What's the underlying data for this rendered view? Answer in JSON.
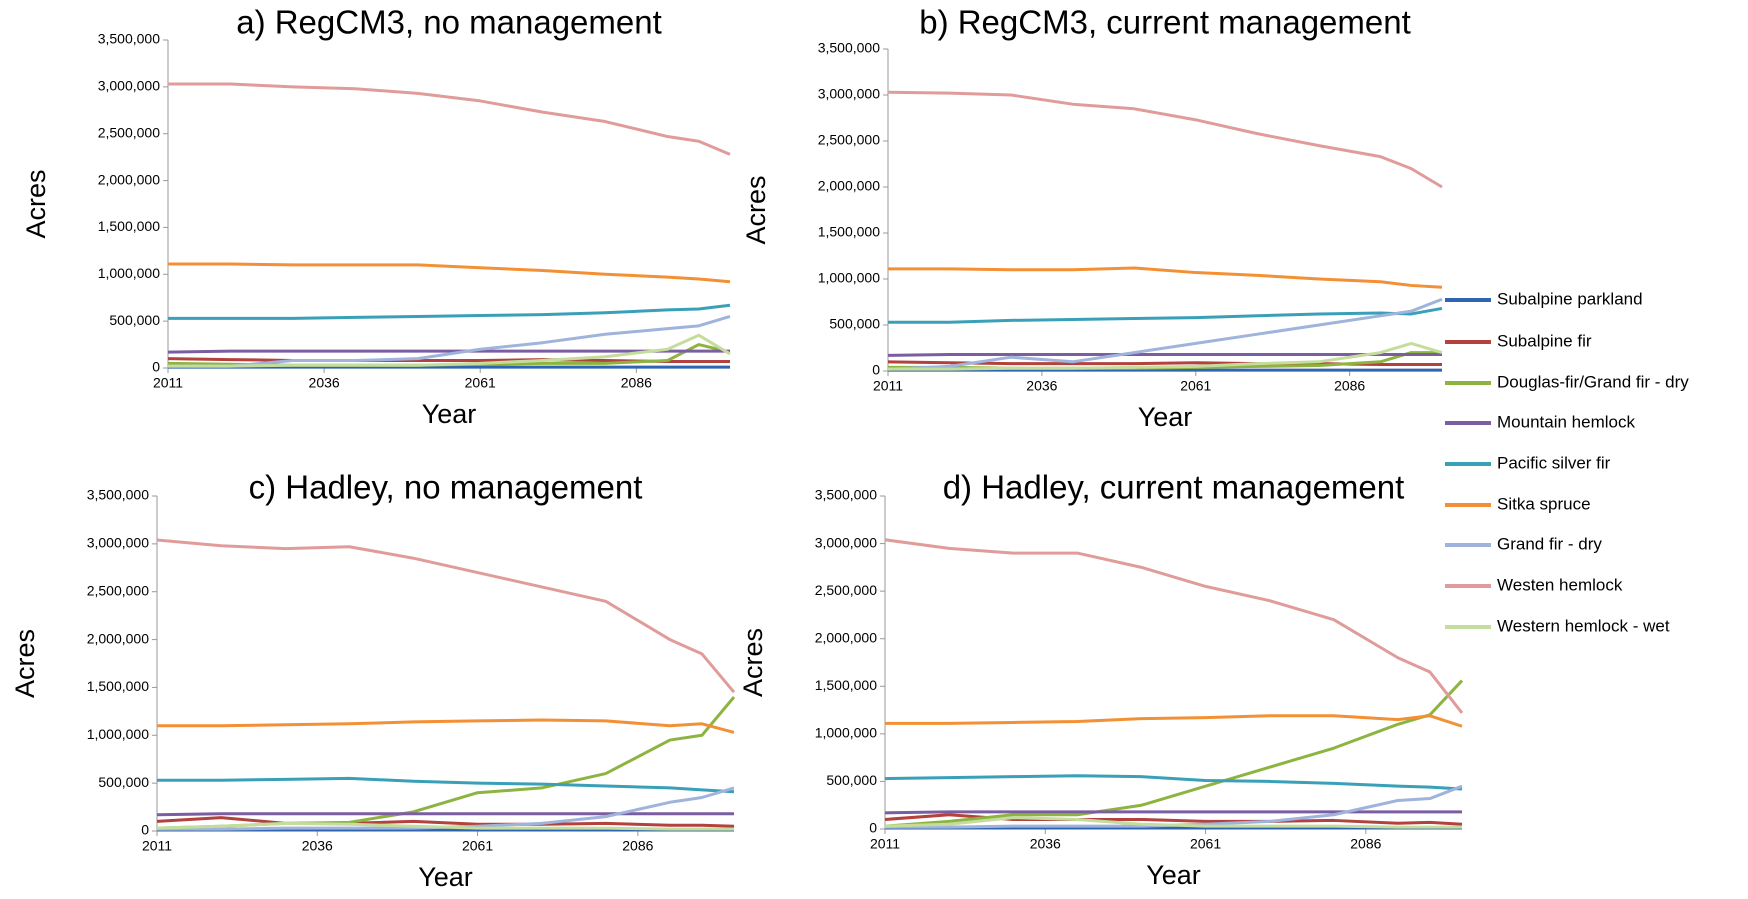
{
  "chart_data": [
    {
      "type": "line",
      "title": "a) RegCM3, no management",
      "x_label": "Year",
      "y_label": "Acres",
      "x": [
        2011,
        2021,
        2031,
        2041,
        2051,
        2061,
        2071,
        2081,
        2091,
        2096,
        2101
      ],
      "xlim": [
        2011,
        2101
      ],
      "xticks": [
        2011,
        2036,
        2061,
        2086
      ],
      "ylim": [
        0,
        3500000
      ],
      "yticks": [
        0,
        {
          "value": 500000,
          "label": "500,000"
        },
        {
          "value": 1000000,
          "label": "1,000,000"
        },
        {
          "value": 1500000,
          "label": "1,500,000"
        },
        {
          "value": 2000000,
          "label": "2,000,000"
        },
        {
          "value": 2500000,
          "label": "2,500,000"
        },
        {
          "value": 3000000,
          "label": "3,000,000"
        },
        {
          "value": 3500000,
          "label": "3,500,000"
        }
      ],
      "series": [
        {
          "name": "Subalpine parkland",
          "color": "#2f64b0",
          "values": [
            10000,
            10000,
            10000,
            10000,
            10000,
            10000,
            10000,
            10000,
            10000,
            10000,
            10000
          ]
        },
        {
          "name": "Subalpine fir",
          "color": "#b3413d",
          "values": [
            100000,
            90000,
            80000,
            80000,
            80000,
            80000,
            90000,
            80000,
            70000,
            70000,
            70000
          ]
        },
        {
          "name": "Douglas-fir/Grand fir - dry",
          "color": "#8db441",
          "values": [
            50000,
            40000,
            30000,
            30000,
            30000,
            40000,
            50000,
            50000,
            80000,
            250000,
            170000
          ]
        },
        {
          "name": "Mountain hemlock",
          "color": "#7b5ea1",
          "values": [
            170000,
            180000,
            180000,
            180000,
            180000,
            180000,
            180000,
            180000,
            180000,
            180000,
            180000
          ]
        },
        {
          "name": "Pacific silver fir",
          "color": "#3aa0b8",
          "values": [
            530000,
            530000,
            530000,
            540000,
            550000,
            560000,
            570000,
            590000,
            620000,
            630000,
            670000
          ]
        },
        {
          "name": "Sitka spruce",
          "color": "#f39035",
          "values": [
            1110000,
            1110000,
            1100000,
            1100000,
            1100000,
            1070000,
            1040000,
            1000000,
            970000,
            950000,
            920000
          ]
        },
        {
          "name": "Grand fir - dry",
          "color": "#9fb3dc",
          "values": [
            20000,
            20000,
            80000,
            80000,
            100000,
            200000,
            270000,
            360000,
            420000,
            450000,
            550000
          ]
        },
        {
          "name": "Westen hemlock",
          "color": "#e09c9a",
          "values": [
            3030000,
            3030000,
            3000000,
            2980000,
            2930000,
            2850000,
            2730000,
            2630000,
            2470000,
            2420000,
            2280000
          ]
        },
        {
          "name": "Western hemlock - wet",
          "color": "#c5dd9c",
          "values": [
            20000,
            20000,
            30000,
            30000,
            30000,
            50000,
            80000,
            120000,
            200000,
            350000,
            150000
          ]
        }
      ]
    },
    {
      "type": "line",
      "title": "b) RegCM3, current management",
      "x_label": "Year",
      "y_label": "Acres",
      "x": [
        2011,
        2021,
        2031,
        2041,
        2051,
        2061,
        2071,
        2081,
        2091,
        2096,
        2101
      ],
      "xlim": [
        2011,
        2101
      ],
      "xticks": [
        2011,
        2036,
        2061,
        2086
      ],
      "ylim": [
        0,
        3500000
      ],
      "yticks": [
        0,
        {
          "value": 500000,
          "label": "500,000"
        },
        {
          "value": 1000000,
          "label": "1,000,000"
        },
        {
          "value": 1500000,
          "label": "1,500,000"
        },
        {
          "value": 2000000,
          "label": "2,000,000"
        },
        {
          "value": 2500000,
          "label": "2,500,000"
        },
        {
          "value": 3000000,
          "label": "3,000,000"
        },
        {
          "value": 3500000,
          "label": "3,500,000"
        }
      ],
      "series": [
        {
          "values": [
            10000,
            10000,
            10000,
            10000,
            10000,
            10000,
            10000,
            10000,
            10000,
            10000,
            10000
          ]
        },
        {
          "values": [
            100000,
            90000,
            80000,
            80000,
            80000,
            90000,
            80000,
            80000,
            70000,
            70000,
            70000
          ]
        },
        {
          "values": [
            40000,
            40000,
            30000,
            30000,
            30000,
            40000,
            50000,
            60000,
            100000,
            200000,
            200000
          ]
        },
        {
          "values": [
            170000,
            180000,
            180000,
            180000,
            180000,
            180000,
            180000,
            180000,
            180000,
            180000,
            180000
          ]
        },
        {
          "values": [
            530000,
            530000,
            550000,
            560000,
            570000,
            580000,
            600000,
            620000,
            630000,
            620000,
            680000
          ]
        },
        {
          "values": [
            1110000,
            1110000,
            1100000,
            1100000,
            1120000,
            1070000,
            1040000,
            1000000,
            970000,
            930000,
            910000
          ]
        },
        {
          "values": [
            20000,
            50000,
            150000,
            100000,
            200000,
            300000,
            400000,
            500000,
            600000,
            650000,
            780000
          ]
        },
        {
          "values": [
            3030000,
            3020000,
            3000000,
            2900000,
            2850000,
            2730000,
            2580000,
            2450000,
            2330000,
            2200000,
            2000000
          ]
        },
        {
          "values": [
            20000,
            20000,
            30000,
            30000,
            40000,
            50000,
            80000,
            100000,
            200000,
            300000,
            200000
          ]
        }
      ]
    },
    {
      "type": "line",
      "title": "c) Hadley, no management",
      "x_label": "Year",
      "y_label": "Acres",
      "x": [
        2011,
        2021,
        2031,
        2041,
        2051,
        2061,
        2071,
        2081,
        2091,
        2096,
        2101
      ],
      "xlim": [
        2011,
        2101
      ],
      "xticks": [
        2011,
        2036,
        2061,
        2086
      ],
      "ylim": [
        0,
        3500000
      ],
      "yticks": [
        0,
        {
          "value": 500000,
          "label": "500,000"
        },
        {
          "value": 1000000,
          "label": "1,000,000"
        },
        {
          "value": 1500000,
          "label": "1,500,000"
        },
        {
          "value": 2000000,
          "label": "2,000,000"
        },
        {
          "value": 2500000,
          "label": "2,500,000"
        },
        {
          "value": 3000000,
          "label": "3,000,000"
        },
        {
          "value": 3500000,
          "label": "3,500,000"
        }
      ],
      "series": [
        {
          "values": [
            10000,
            10000,
            10000,
            10000,
            10000,
            10000,
            10000,
            10000,
            10000,
            10000,
            10000
          ]
        },
        {
          "values": [
            100000,
            140000,
            80000,
            80000,
            100000,
            70000,
            70000,
            80000,
            60000,
            60000,
            50000
          ]
        },
        {
          "values": [
            30000,
            50000,
            80000,
            90000,
            200000,
            400000,
            450000,
            600000,
            950000,
            1000000,
            1400000
          ]
        },
        {
          "values": [
            170000,
            180000,
            180000,
            180000,
            180000,
            180000,
            180000,
            180000,
            180000,
            180000,
            180000
          ]
        },
        {
          "values": [
            530000,
            530000,
            540000,
            550000,
            520000,
            500000,
            490000,
            470000,
            450000,
            430000,
            410000
          ]
        },
        {
          "values": [
            1100000,
            1100000,
            1110000,
            1120000,
            1140000,
            1150000,
            1160000,
            1150000,
            1100000,
            1120000,
            1030000
          ]
        },
        {
          "values": [
            20000,
            20000,
            30000,
            30000,
            30000,
            50000,
            80000,
            150000,
            300000,
            350000,
            450000
          ]
        },
        {
          "values": [
            3040000,
            2980000,
            2950000,
            2970000,
            2850000,
            2700000,
            2550000,
            2400000,
            2000000,
            1850000,
            1450000
          ]
        },
        {
          "values": [
            30000,
            50000,
            80000,
            70000,
            50000,
            30000,
            30000,
            30000,
            20000,
            20000,
            20000
          ]
        }
      ]
    },
    {
      "type": "line",
      "title": "d) Hadley, current management",
      "x_label": "Year",
      "y_label": "Acres",
      "x": [
        2011,
        2021,
        2031,
        2041,
        2051,
        2061,
        2071,
        2081,
        2091,
        2096,
        2101
      ],
      "xlim": [
        2011,
        2101
      ],
      "xticks": [
        2011,
        2036,
        2061,
        2086
      ],
      "ylim": [
        0,
        3500000
      ],
      "yticks": [
        0,
        {
          "value": 500000,
          "label": "500,000"
        },
        {
          "value": 1000000,
          "label": "1,000,000"
        },
        {
          "value": 1500000,
          "label": "1,500,000"
        },
        {
          "value": 2000000,
          "label": "2,000,000"
        },
        {
          "value": 2500000,
          "label": "2,500,000"
        },
        {
          "value": 3000000,
          "label": "3,000,000"
        },
        {
          "value": 3500000,
          "label": "3,500,000"
        }
      ],
      "series": [
        {
          "values": [
            10000,
            10000,
            10000,
            10000,
            10000,
            10000,
            10000,
            10000,
            10000,
            10000,
            10000
          ]
        },
        {
          "values": [
            100000,
            150000,
            100000,
            100000,
            100000,
            80000,
            80000,
            90000,
            60000,
            70000,
            50000
          ]
        },
        {
          "values": [
            30000,
            80000,
            150000,
            150000,
            250000,
            450000,
            650000,
            850000,
            1100000,
            1200000,
            1560000
          ]
        },
        {
          "values": [
            170000,
            180000,
            180000,
            180000,
            180000,
            180000,
            180000,
            180000,
            180000,
            180000,
            180000
          ]
        },
        {
          "values": [
            530000,
            540000,
            550000,
            560000,
            550000,
            510000,
            500000,
            480000,
            450000,
            440000,
            420000
          ]
        },
        {
          "values": [
            1110000,
            1110000,
            1120000,
            1130000,
            1160000,
            1170000,
            1190000,
            1190000,
            1150000,
            1190000,
            1080000
          ]
        },
        {
          "values": [
            20000,
            20000,
            30000,
            30000,
            30000,
            50000,
            80000,
            150000,
            300000,
            320000,
            450000
          ]
        },
        {
          "values": [
            3040000,
            2950000,
            2900000,
            2900000,
            2750000,
            2550000,
            2400000,
            2200000,
            1800000,
            1650000,
            1220000
          ]
        },
        {
          "values": [
            30000,
            50000,
            120000,
            100000,
            50000,
            30000,
            30000,
            30000,
            20000,
            20000,
            20000
          ]
        }
      ]
    }
  ]
}
